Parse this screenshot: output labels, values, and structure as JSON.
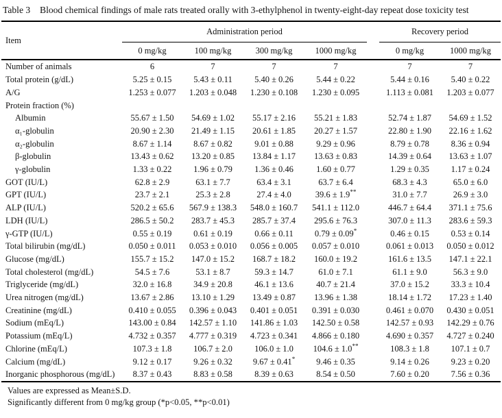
{
  "title": {
    "label": "Table 3",
    "text": "Blood chemical findings of male rats treated orally with 3-ethylphenol in twenty-eight-day repeat dose toxicity test"
  },
  "colors": {
    "background": "#ffffff",
    "text": "#131313",
    "rule": "#000000"
  },
  "table": {
    "item_header": "Item",
    "groups": [
      {
        "label": "Administration period"
      },
      {
        "label": "Recovery period"
      }
    ],
    "dose_headers": [
      "0 mg/kg",
      "100 mg/kg",
      "300 mg/kg",
      "1000 mg/kg",
      "0 mg/kg",
      "1000 mg/kg"
    ],
    "rows": [
      {
        "label": "Number of animals",
        "indent": false,
        "values": [
          "6",
          "7",
          "7",
          "7",
          "7",
          "7"
        ]
      },
      {
        "label": "Total protein (g/dL)",
        "indent": false,
        "values": [
          "5.25 ± 0.15",
          "5.43 ± 0.11",
          "5.40 ± 0.26",
          "5.44 ± 0.22",
          "5.44 ± 0.16",
          "5.40 ± 0.22"
        ]
      },
      {
        "label": "A/G",
        "indent": false,
        "values": [
          "1.253 ± 0.077",
          "1.203 ± 0.048",
          "1.230 ± 0.108",
          "1.230 ± 0.095",
          "1.113 ± 0.081",
          "1.203 ± 0.077"
        ]
      },
      {
        "label": "Protein fraction (%)",
        "indent": false,
        "values": [
          "",
          "",
          "",
          "",
          "",
          ""
        ]
      },
      {
        "label": "Albumin",
        "indent": true,
        "values": [
          "55.67 ± 1.50",
          "54.69 ± 1.02",
          "55.17 ± 2.16",
          "55.21 ± 1.83",
          "52.74 ± 1.87",
          "54.69 ± 1.52"
        ]
      },
      {
        "label": "α₁-globulin",
        "indent": true,
        "values": [
          "20.90 ± 2.30",
          "21.49 ± 1.15",
          "20.61 ± 1.85",
          "20.27 ± 1.57",
          "22.80 ± 1.90",
          "22.16 ± 1.62"
        ]
      },
      {
        "label": "α₂-globulin",
        "indent": true,
        "values": [
          "8.67 ± 1.14",
          "8.67 ± 0.82",
          "9.01 ± 0.88",
          "9.29 ± 0.96",
          "8.79 ± 0.78",
          "8.36 ± 0.94"
        ]
      },
      {
        "label": "β-globulin",
        "indent": true,
        "values": [
          "13.43 ± 0.62",
          "13.20 ± 0.85",
          "13.84 ± 1.17",
          "13.63 ± 0.83",
          "14.39 ± 0.64",
          "13.63 ± 1.07"
        ]
      },
      {
        "label": "γ-globulin",
        "indent": true,
        "values": [
          "1.33 ± 0.22",
          "1.96 ± 0.79",
          "1.36 ± 0.46",
          "1.60 ± 0.77",
          "1.29 ± 0.35",
          "1.17 ± 0.24"
        ]
      },
      {
        "label": "GOT (IU/L)",
        "indent": false,
        "values": [
          "62.8 ± 2.9",
          "63.1 ± 7.7",
          "63.4 ± 3.1",
          "63.7 ± 6.4",
          "68.3 ± 4.3",
          "65.0 ± 6.0"
        ]
      },
      {
        "label": "GPT (IU/L)",
        "indent": false,
        "values": [
          "23.7 ± 2.1",
          "25.3 ± 2.8",
          "27.4 ± 4.0",
          "39.6 ± 1.9**",
          "31.0 ± 7.7",
          "26.9 ± 3.0"
        ]
      },
      {
        "label": "ALP (IU/L)",
        "indent": false,
        "values": [
          "520.2 ± 65.6",
          "567.9 ± 138.3",
          "548.0 ± 160.7",
          "541.1 ± 112.0",
          "446.7 ± 64.4",
          "371.1 ± 75.6"
        ]
      },
      {
        "label": "LDH (IU/L)",
        "indent": false,
        "values": [
          "286.5 ± 50.2",
          "283.7 ± 45.3",
          "285.7 ± 37.4",
          "295.6 ± 76.3",
          "307.0 ± 11.3",
          "283.6 ± 59.3"
        ]
      },
      {
        "label": "γ-GTP (IU/L)",
        "indent": false,
        "values": [
          "0.55 ± 0.19",
          "0.61 ± 0.19",
          "0.66 ± 0.11",
          "0.79 ± 0.09*",
          "0.46 ± 0.15",
          "0.53 ± 0.14"
        ]
      },
      {
        "label": "Total bilirubin (mg/dL)",
        "indent": false,
        "values": [
          "0.050 ± 0.011",
          "0.053 ± 0.010",
          "0.056 ± 0.005",
          "0.057 ± 0.010",
          "0.061 ± 0.013",
          "0.050 ± 0.012"
        ]
      },
      {
        "label": "Glucose (mg/dL)",
        "indent": false,
        "values": [
          "155.7 ± 15.2",
          "147.0 ± 15.2",
          "168.7 ± 18.2",
          "160.0 ± 19.2",
          "161.6 ± 13.5",
          "147.1 ± 22.1"
        ]
      },
      {
        "label": "Total cholesterol (mg/dL)",
        "indent": false,
        "values": [
          "54.5 ± 7.6",
          "53.1 ± 8.7",
          "59.3 ± 14.7",
          "61.0 ± 7.1",
          "61.1 ± 9.0",
          "56.3 ± 9.0"
        ]
      },
      {
        "label": "Triglyceride (mg/dL)",
        "indent": false,
        "values": [
          "32.0 ± 16.8",
          "34.9 ± 20.8",
          "46.1 ± 13.6",
          "40.7 ± 21.4",
          "37.0 ± 15.2",
          "33.3 ± 10.4"
        ]
      },
      {
        "label": "Urea nitrogen (mg/dL)",
        "indent": false,
        "values": [
          "13.67 ± 2.86",
          "13.10 ± 1.29",
          "13.49 ± 0.87",
          "13.96 ± 1.38",
          "18.14 ± 1.72",
          "17.23 ± 1.40"
        ]
      },
      {
        "label": "Creatinine (mg/dL)",
        "indent": false,
        "values": [
          "0.410 ± 0.055",
          "0.396 ± 0.043",
          "0.401 ± 0.051",
          "0.391 ± 0.030",
          "0.461 ± 0.070",
          "0.430 ± 0.051"
        ]
      },
      {
        "label": "Sodium (mEq/L)",
        "indent": false,
        "values": [
          "143.00 ± 0.84",
          "142.57 ± 1.10",
          "141.86 ± 1.03",
          "142.50 ± 0.58",
          "142.57 ± 0.93",
          "142.29 ± 0.76"
        ]
      },
      {
        "label": "Potassium (mEq/L)",
        "indent": false,
        "values": [
          "4.732 ± 0.357",
          "4.777 ± 0.319",
          "4.723 ± 0.341",
          "4.866 ± 0.180",
          "4.690 ± 0.357",
          "4.727 ± 0.240"
        ]
      },
      {
        "label": "Chlorine (mEq/L)",
        "indent": false,
        "values": [
          "107.3 ± 1.8",
          "106.7 ± 2.0",
          "106.0 ± 1.0",
          "104.6 ± 1.0**",
          "108.3 ± 1.8",
          "107.1 ± 0.7"
        ]
      },
      {
        "label": "Calcium (mg/dL)",
        "indent": false,
        "values": [
          "9.12 ± 0.17",
          "9.26 ± 0.32",
          "9.67 ± 0.41*",
          "9.46 ± 0.35",
          "9.14 ± 0.26",
          "9.23 ± 0.20"
        ]
      },
      {
        "label": "Inorganic phosphorous (mg/dL)",
        "indent": false,
        "values": [
          "8.37 ± 0.43",
          "8.83 ± 0.58",
          "8.39 ± 0.63",
          "8.54 ± 0.50",
          "7.60 ± 0.20",
          "7.56 ± 0.36"
        ]
      }
    ]
  },
  "footnotes": [
    "Values are expressed as Mean±S.D.",
    "Significantly different from 0 mg/kg group (*p<0.05, **p<0.01)"
  ]
}
